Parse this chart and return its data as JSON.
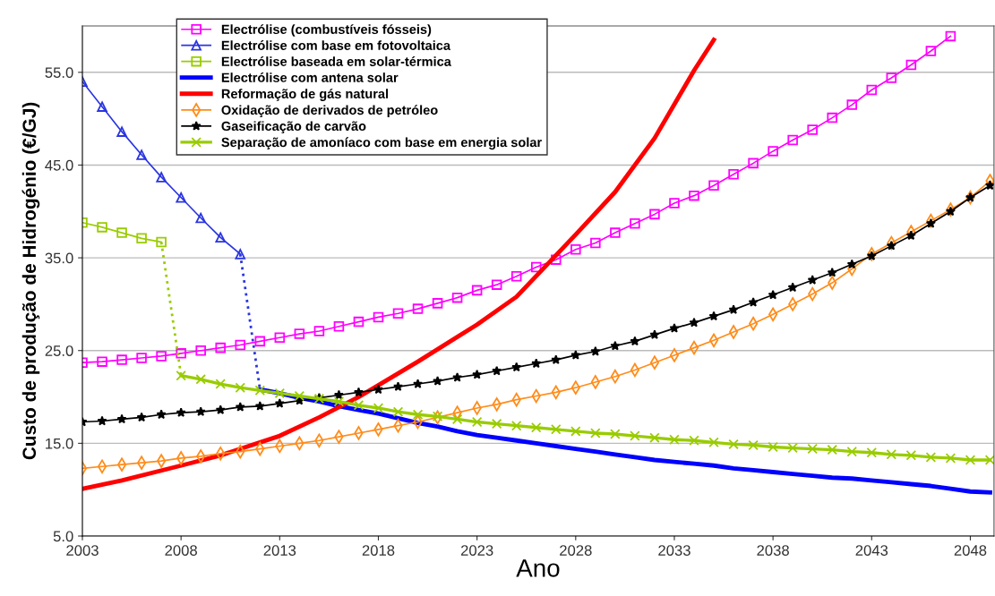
{
  "chart_data": {
    "type": "line",
    "xlabel": "Ano",
    "ylabel": "Custo de produção de Hidrogénio (€/GJ)",
    "xlim": [
      2003,
      2049.2
    ],
    "ylim": [
      5,
      60
    ],
    "xticks": [
      2003,
      2008,
      2013,
      2018,
      2023,
      2028,
      2033,
      2038,
      2043,
      2048
    ],
    "yticks": [
      {
        "value": 5,
        "label": "5.0"
      },
      {
        "value": 15,
        "label": "15.0"
      },
      {
        "value": 25,
        "label": "25.0"
      },
      {
        "value": 35,
        "label": "35.0"
      },
      {
        "value": 45,
        "label": "45.0"
      },
      {
        "value": 55,
        "label": "55.0"
      }
    ],
    "grid": "y",
    "legend": "top",
    "series": [
      {
        "name": "Electrólise (combustíveis fósseis)",
        "color": "#ff00ff",
        "marker": "square",
        "x": [
          2003,
          2004,
          2005,
          2006,
          2007,
          2008,
          2009,
          2010,
          2011,
          2012,
          2013,
          2014,
          2015,
          2016,
          2017,
          2018,
          2019,
          2020,
          2021,
          2022,
          2023,
          2024,
          2025,
          2026,
          2027,
          2028,
          2029,
          2030,
          2031,
          2032,
          2033,
          2034,
          2035,
          2036,
          2037,
          2038,
          2039,
          2040,
          2041,
          2042,
          2043,
          2044,
          2045,
          2046,
          2047
        ],
        "values": [
          23.7,
          23.8,
          24.0,
          24.2,
          24.4,
          24.7,
          25.0,
          25.3,
          25.6,
          26.0,
          26.4,
          26.8,
          27.1,
          27.6,
          28.1,
          28.6,
          29.0,
          29.5,
          30.1,
          30.7,
          31.5,
          32.1,
          33.0,
          34.0,
          34.8,
          35.9,
          36.6,
          37.7,
          38.7,
          39.7,
          40.9,
          41.7,
          42.8,
          44.0,
          45.2,
          46.5,
          47.7,
          48.8,
          50.1,
          51.5,
          53.1,
          54.4,
          55.8,
          57.3,
          58.9
        ]
      },
      {
        "name": "Electrólise com base em fotovoltaica",
        "color": "#2a35e0",
        "marker": "triangle",
        "x": [
          2003,
          2004,
          2005,
          2006,
          2007,
          2008,
          2009,
          2010,
          2011
        ],
        "values": [
          54.0,
          51.3,
          48.6,
          46.1,
          43.7,
          41.5,
          39.3,
          37.2,
          35.4
        ]
      },
      {
        "name": "Electrólise baseada em solar-térmica",
        "color": "#99cc00",
        "marker": "square",
        "x": [
          2003,
          2004,
          2005,
          2006,
          2007
        ],
        "values": [
          38.8,
          38.3,
          37.7,
          37.1,
          36.7
        ]
      },
      {
        "name": "Electrólise com antena solar",
        "color": "#0000ff",
        "marker": "none",
        "x": [
          2012,
          2013,
          2014,
          2015,
          2016,
          2017,
          2018,
          2019,
          2020,
          2021,
          2022,
          2023,
          2024,
          2025,
          2026,
          2027,
          2028,
          2029,
          2030,
          2031,
          2032,
          2033,
          2034,
          2035,
          2036,
          2037,
          2038,
          2039,
          2040,
          2041,
          2042,
          2043,
          2044,
          2045,
          2046,
          2047,
          2048,
          2049
        ],
        "values": [
          20.8,
          20.4,
          19.9,
          19.5,
          19.0,
          18.6,
          18.2,
          17.7,
          17.2,
          16.8,
          16.3,
          15.9,
          15.6,
          15.3,
          15.0,
          14.7,
          14.4,
          14.1,
          13.8,
          13.5,
          13.2,
          13.0,
          12.8,
          12.6,
          12.3,
          12.1,
          11.9,
          11.7,
          11.5,
          11.3,
          11.2,
          11.0,
          10.8,
          10.6,
          10.4,
          10.1,
          9.8,
          9.7
        ]
      },
      {
        "name": "Reformação de gás natural",
        "color": "#ff0000",
        "marker": "none",
        "x": [
          2003,
          2005,
          2008,
          2010,
          2013,
          2015,
          2017,
          2020,
          2023,
          2025,
          2028,
          2030,
          2032,
          2034,
          2035
        ],
        "values": [
          10.1,
          11.0,
          12.6,
          13.7,
          15.8,
          17.8,
          20.0,
          23.8,
          27.8,
          30.8,
          37.5,
          42.1,
          47.9,
          55.2,
          58.5
        ]
      },
      {
        "name": "Oxidação de derivados de petróleo",
        "color": "#ff8c1a",
        "marker": "diamond",
        "x": [
          2003,
          2004,
          2005,
          2006,
          2007,
          2008,
          2009,
          2010,
          2011,
          2012,
          2013,
          2014,
          2015,
          2016,
          2017,
          2018,
          2019,
          2020,
          2021,
          2022,
          2023,
          2024,
          2025,
          2026,
          2027,
          2028,
          2029,
          2030,
          2031,
          2032,
          2033,
          2034,
          2035,
          2036,
          2037,
          2038,
          2039,
          2040,
          2041,
          2042,
          2043,
          2044,
          2045,
          2046,
          2047,
          2048,
          2049
        ],
        "values": [
          12.3,
          12.5,
          12.7,
          12.9,
          13.1,
          13.4,
          13.6,
          13.9,
          14.1,
          14.4,
          14.7,
          15.0,
          15.3,
          15.7,
          16.1,
          16.5,
          16.9,
          17.3,
          17.8,
          18.3,
          18.8,
          19.2,
          19.7,
          20.1,
          20.5,
          21.0,
          21.6,
          22.2,
          22.9,
          23.7,
          24.5,
          25.3,
          26.1,
          27.0,
          27.9,
          28.9,
          30.0,
          31.1,
          32.3,
          33.8,
          35.4,
          36.6,
          37.8,
          39.0,
          40.2,
          41.5,
          43.3
        ]
      },
      {
        "name": "Gaseificação de carvão",
        "color": "#000000",
        "marker": "star",
        "x": [
          2003,
          2004,
          2005,
          2006,
          2007,
          2008,
          2009,
          2010,
          2011,
          2012,
          2013,
          2014,
          2015,
          2016,
          2017,
          2018,
          2019,
          2020,
          2021,
          2022,
          2023,
          2024,
          2025,
          2026,
          2027,
          2028,
          2029,
          2030,
          2031,
          2032,
          2033,
          2034,
          2035,
          2036,
          2037,
          2038,
          2039,
          2040,
          2041,
          2042,
          2043,
          2044,
          2045,
          2046,
          2047,
          2048,
          2049
        ],
        "values": [
          17.3,
          17.4,
          17.6,
          17.8,
          18.1,
          18.3,
          18.4,
          18.6,
          18.9,
          19.0,
          19.3,
          19.6,
          19.9,
          20.2,
          20.5,
          20.8,
          21.1,
          21.4,
          21.7,
          22.1,
          22.4,
          22.8,
          23.2,
          23.6,
          24.0,
          24.5,
          24.9,
          25.5,
          26.0,
          26.7,
          27.4,
          28.0,
          28.7,
          29.4,
          30.2,
          31.0,
          31.8,
          32.6,
          33.4,
          34.3,
          35.2,
          36.3,
          37.4,
          38.7,
          40.0,
          41.5,
          42.8
        ]
      },
      {
        "name": "Separação de amoníaco com base em energia solar",
        "color": "#99cc00",
        "marker": "cross",
        "x": [
          2008,
          2009,
          2010,
          2011,
          2012,
          2013,
          2014,
          2015,
          2016,
          2017,
          2018,
          2019,
          2020,
          2021,
          2022,
          2023,
          2024,
          2025,
          2026,
          2027,
          2028,
          2029,
          2030,
          2031,
          2032,
          2033,
          2034,
          2035,
          2036,
          2037,
          2038,
          2039,
          2040,
          2041,
          2042,
          2043,
          2044,
          2045,
          2046,
          2047,
          2048,
          2049
        ],
        "values": [
          22.3,
          21.9,
          21.4,
          21.0,
          20.7,
          20.4,
          20.1,
          19.8,
          19.5,
          19.1,
          18.8,
          18.4,
          18.1,
          17.9,
          17.6,
          17.3,
          17.1,
          16.9,
          16.7,
          16.5,
          16.3,
          16.1,
          16.0,
          15.8,
          15.6,
          15.4,
          15.3,
          15.1,
          14.9,
          14.8,
          14.6,
          14.5,
          14.4,
          14.3,
          14.1,
          14.0,
          13.8,
          13.7,
          13.5,
          13.4,
          13.2,
          13.2
        ]
      },
      {
        "color": "#2a35e0",
        "marker": "none",
        "line_style": "dotted",
        "x": [
          2011,
          2012
        ],
        "values": [
          35.4,
          20.8
        ]
      },
      {
        "color": "#99cc00",
        "marker": "none",
        "line_style": "dotted",
        "x": [
          2007,
          2008
        ],
        "values": [
          36.7,
          22.3
        ]
      }
    ]
  }
}
